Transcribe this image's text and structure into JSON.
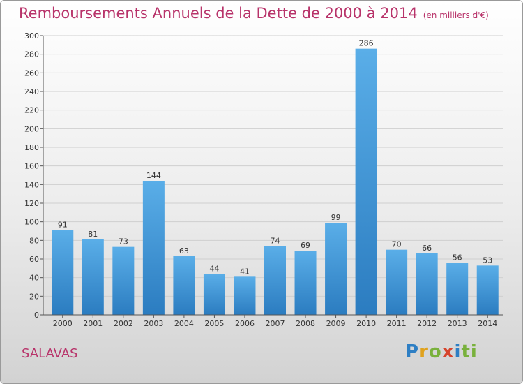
{
  "header": {
    "title": "Remboursements Annuels de la Dette de 2000 à 2014",
    "unit": "(en milliers d'€)"
  },
  "footer": {
    "place": "SALAVAS",
    "logo_letters": [
      "P",
      "r",
      "o",
      "x",
      "i",
      "ti"
    ]
  },
  "colors": {
    "title": "#b8336a",
    "bar_top": "#5aaee8",
    "bar_bottom": "#2b7cc0",
    "grid": "#cfcfcf"
  },
  "chart_data": {
    "type": "bar",
    "title": "Remboursements Annuels de la Dette de 2000 à 2014",
    "xlabel": "",
    "ylabel": "",
    "ylim": [
      0,
      300
    ],
    "yticks": [
      0,
      20,
      40,
      60,
      80,
      100,
      120,
      140,
      160,
      180,
      200,
      220,
      240,
      260,
      280,
      300
    ],
    "grid": true,
    "categories": [
      "2000",
      "2001",
      "2002",
      "2003",
      "2004",
      "2005",
      "2006",
      "2007",
      "2008",
      "2009",
      "2010",
      "2011",
      "2012",
      "2013",
      "2014"
    ],
    "values": [
      91,
      81,
      73,
      144,
      63,
      44,
      41,
      74,
      69,
      99,
      286,
      70,
      66,
      56,
      53
    ]
  }
}
